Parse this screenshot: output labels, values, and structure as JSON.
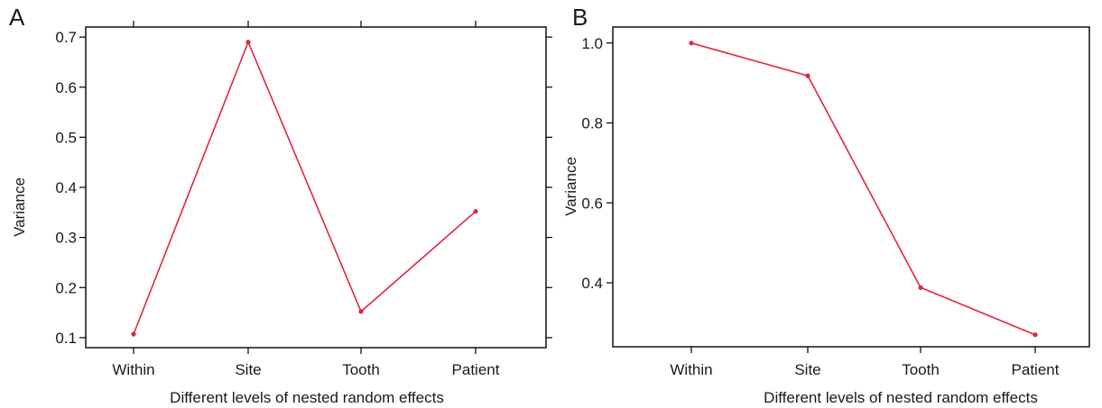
{
  "figure": {
    "panels": [
      "A",
      "B"
    ]
  },
  "chart_data": [
    {
      "panel": "A",
      "type": "line",
      "categories": [
        "Within",
        "Site",
        "Tooth",
        "Patient"
      ],
      "series": [
        {
          "values": [
            0.107,
            0.69,
            0.152,
            0.352
          ],
          "color": "#e3263e"
        }
      ],
      "xlabel": "Different levels of nested random effects",
      "ylabel": "Variance",
      "ylim": [
        0.08,
        0.72
      ],
      "yticks": [
        0.1,
        0.2,
        0.3,
        0.4,
        0.5,
        0.6,
        0.7
      ],
      "ytick_labels": [
        "0.1",
        "0.2",
        "0.3",
        "0.4",
        "0.5",
        "0.6",
        "0.7"
      ],
      "right_ticks": true,
      "top_ticks": true,
      "grid": false,
      "legend": "none"
    },
    {
      "panel": "B",
      "type": "line",
      "categories": [
        "Within",
        "Site",
        "Tooth",
        "Patient"
      ],
      "series": [
        {
          "values": [
            1.0,
            0.918,
            0.388,
            0.27
          ],
          "color": "#e3263e"
        }
      ],
      "xlabel": "Different levels of nested random effects",
      "ylabel": "Variance",
      "ylim": [
        0.24,
        1.04
      ],
      "yticks": [
        0.4,
        0.6,
        0.8,
        1.0
      ],
      "ytick_labels": [
        "0.4",
        "0.6",
        "0.8",
        "1.0"
      ],
      "right_ticks": false,
      "top_ticks": false,
      "grid": false,
      "legend": "none"
    }
  ]
}
